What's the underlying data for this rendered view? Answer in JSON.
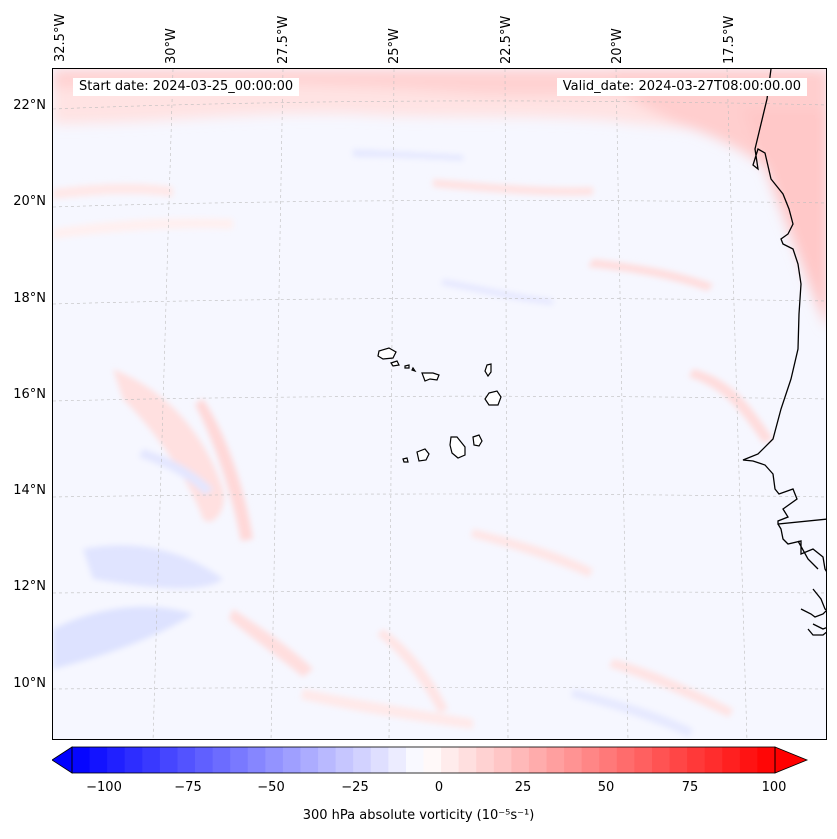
{
  "map": {
    "start_date": "Start date: 2024-03-25_00:00:00",
    "valid_date": "Valid_date: 2024-03-27T08:00:00.00",
    "longitude_labels": [
      "32.5°W",
      "30°W",
      "27.5°W",
      "25°W",
      "22.5°W",
      "20°W",
      "17.5°W"
    ],
    "latitude_labels": [
      "22°N",
      "20°N",
      "18°N",
      "16°N",
      "14°N",
      "12°N",
      "10°N"
    ],
    "features": [
      "Cape Verde islands",
      "West African coastline"
    ],
    "colors": {
      "negative_max": "#0000ff",
      "neutral": "#ffffff",
      "positive_max": "#ff0000",
      "coastline": "#000000"
    }
  },
  "colorbar": {
    "ticks": [
      "−100",
      "−75",
      "−50",
      "−25",
      "0",
      "25",
      "50",
      "75",
      "100"
    ],
    "label": "300 hPa absolute vorticity (10⁻⁵s⁻¹)",
    "range": [
      -100,
      100
    ],
    "colormap": "bwr"
  }
}
